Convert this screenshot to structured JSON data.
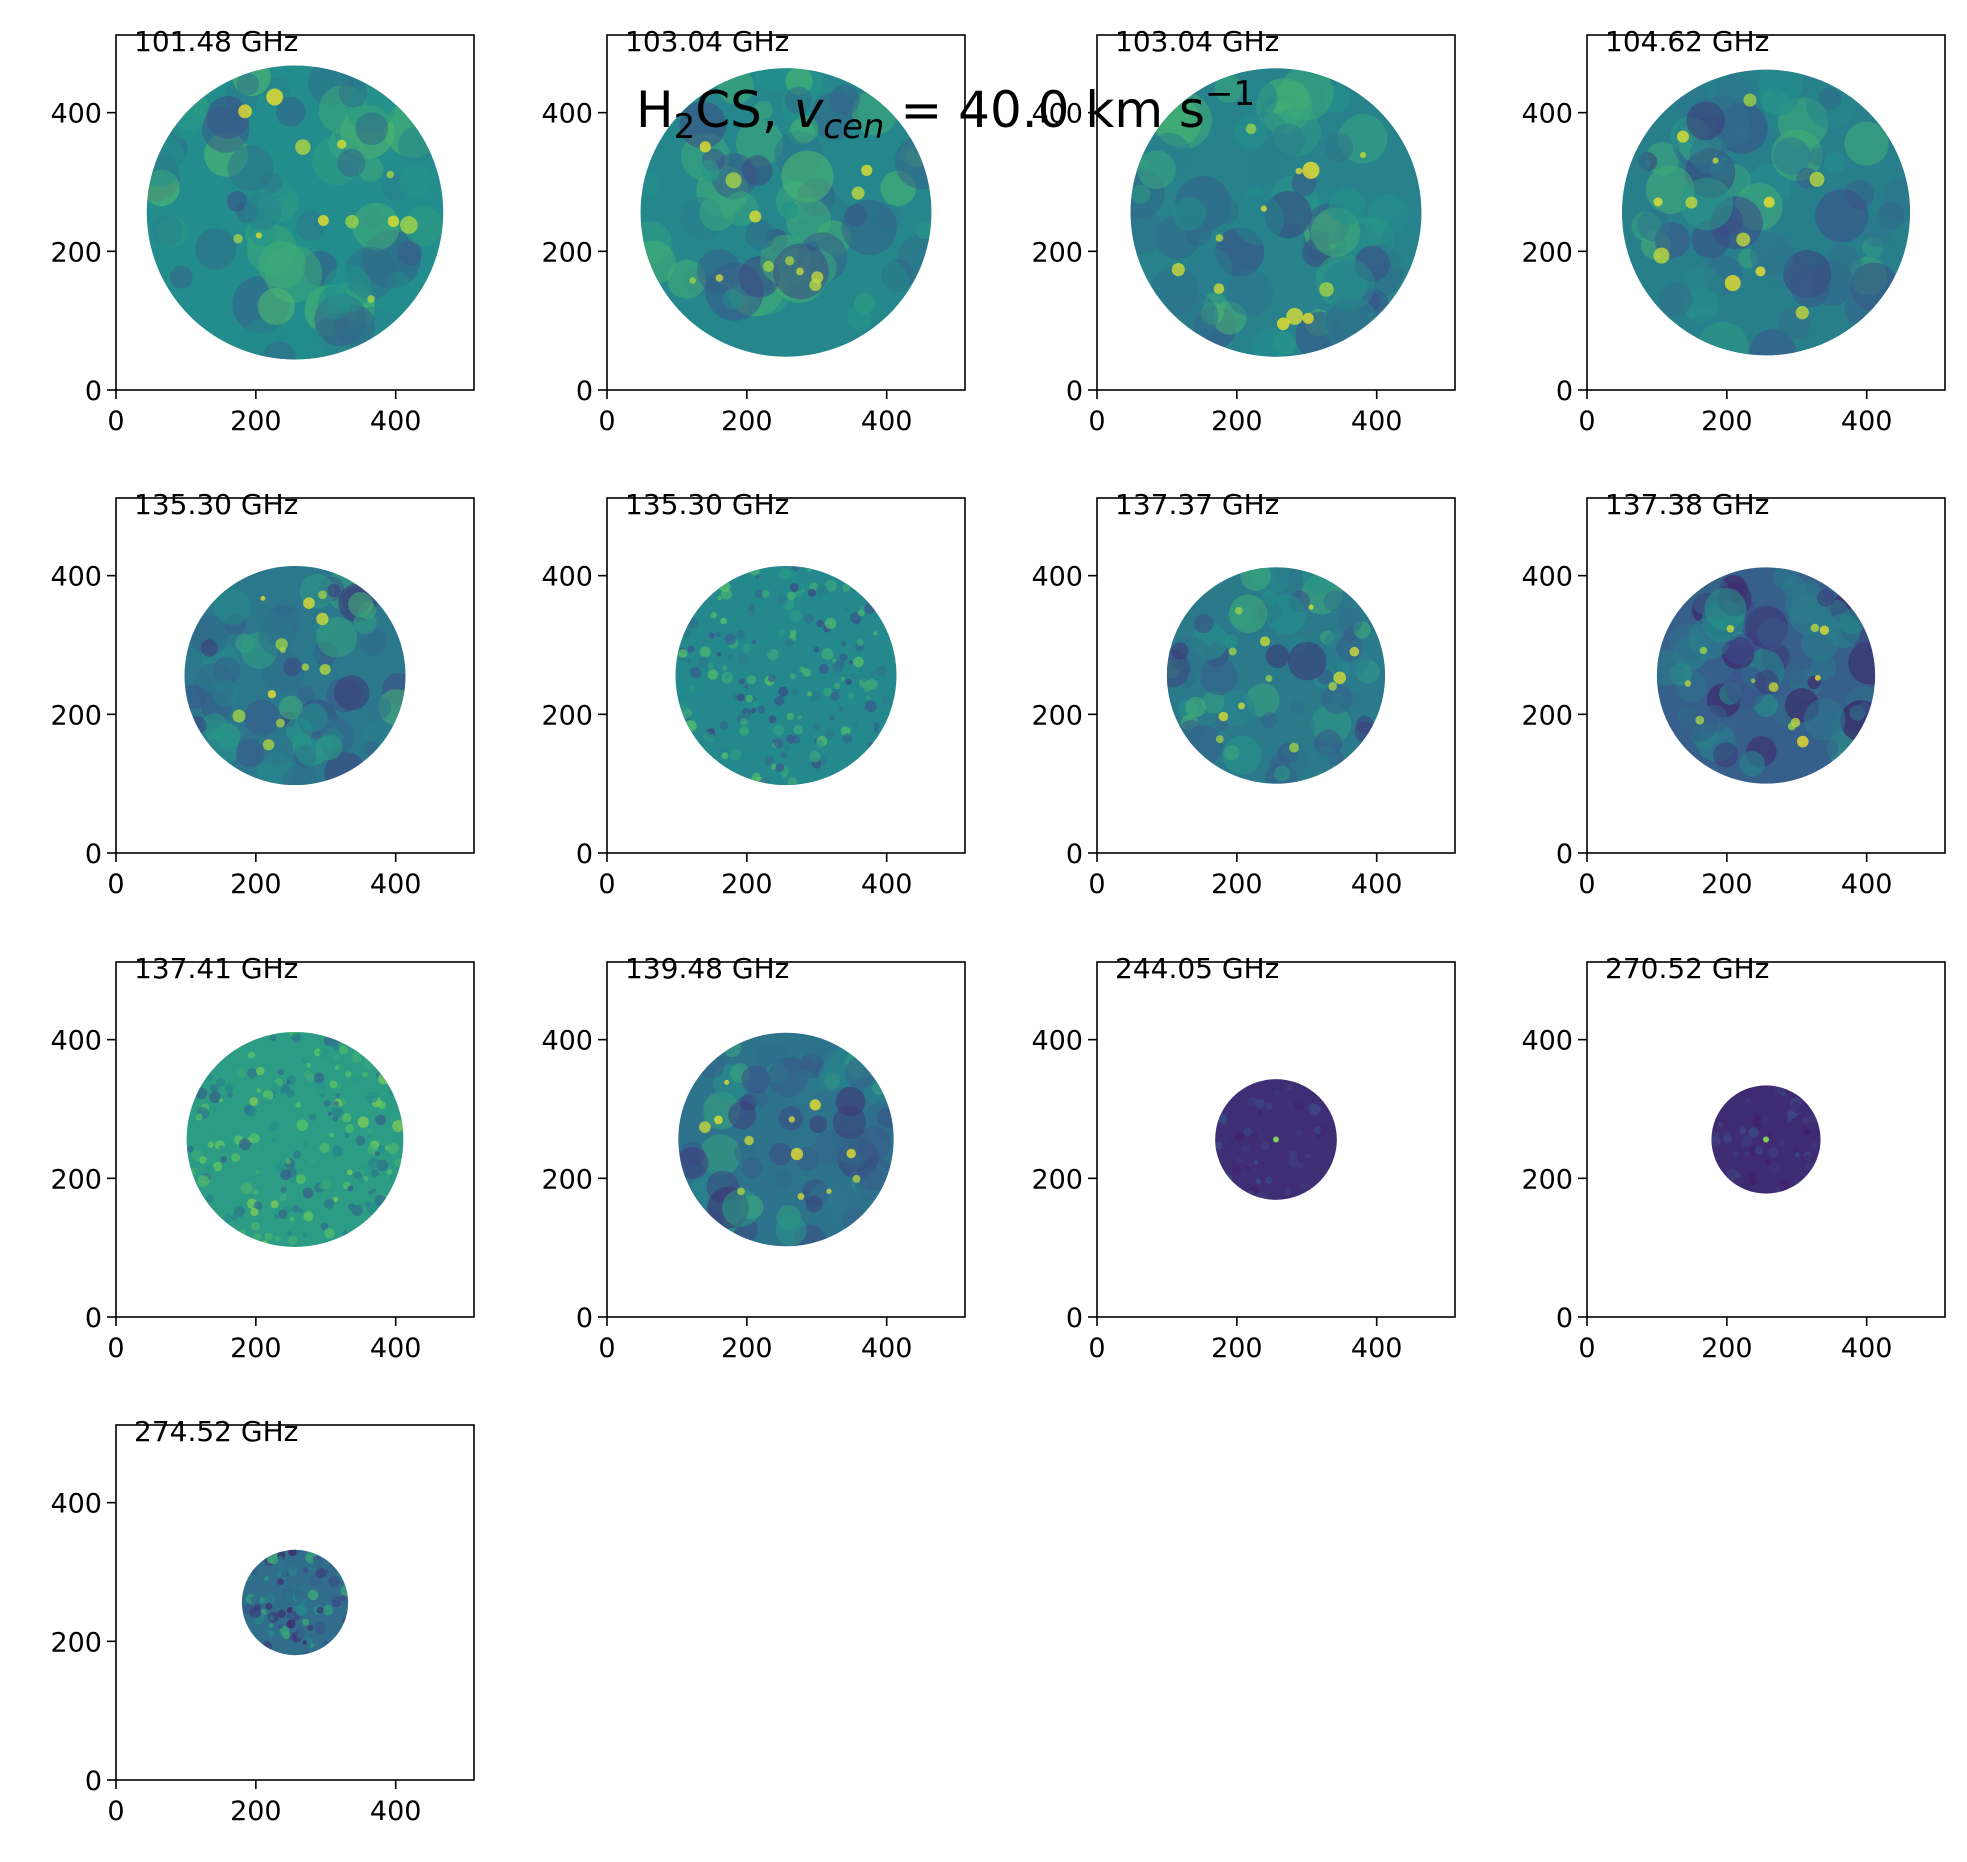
{
  "chart_data": {
    "type": "heatmap",
    "title": {
      "species_main": "H",
      "species_sub": "2",
      "species_rest": "CS, ",
      "var_main": "v",
      "var_sub": "cen",
      "equals": " = ",
      "value": "40.0",
      "unit": " km s",
      "unit_sup": "−1"
    },
    "x_ticks": [
      0,
      200,
      400
    ],
    "y_ticks": [
      0,
      200,
      400
    ],
    "xlim": [
      0,
      512
    ],
    "ylim": [
      0,
      512
    ],
    "grid": false,
    "colormap": "viridis",
    "colormap_stops": [
      "#440154",
      "#3b528b",
      "#21918c",
      "#5ec962",
      "#fde725"
    ],
    "panels": [
      {
        "label": "101.48 GHz",
        "cx": 256,
        "cy": 256,
        "r": 212,
        "brightness": 0.48,
        "texture": "smooth"
      },
      {
        "label": "103.04 GHz",
        "cx": 256,
        "cy": 256,
        "r": 208,
        "brightness": 0.46,
        "texture": "smooth"
      },
      {
        "label": "103.04 GHz",
        "cx": 256,
        "cy": 256,
        "r": 208,
        "brightness": 0.44,
        "texture": "smooth"
      },
      {
        "label": "104.62 GHz",
        "cx": 256,
        "cy": 256,
        "r": 206,
        "brightness": 0.43,
        "texture": "smooth"
      },
      {
        "label": "135.30 GHz",
        "cx": 256,
        "cy": 256,
        "r": 158,
        "brightness": 0.4,
        "texture": "smooth"
      },
      {
        "label": "135.30 GHz",
        "cx": 256,
        "cy": 256,
        "r": 158,
        "brightness": 0.47,
        "texture": "noise"
      },
      {
        "label": "137.37 GHz",
        "cx": 256,
        "cy": 256,
        "r": 156,
        "brightness": 0.41,
        "texture": "smooth"
      },
      {
        "label": "137.38 GHz",
        "cx": 256,
        "cy": 256,
        "r": 156,
        "brightness": 0.3,
        "texture": "smooth"
      },
      {
        "label": "137.41 GHz",
        "cx": 256,
        "cy": 256,
        "r": 155,
        "brightness": 0.55,
        "texture": "noise"
      },
      {
        "label": "139.48 GHz",
        "cx": 256,
        "cy": 256,
        "r": 154,
        "brightness": 0.38,
        "texture": "smooth"
      },
      {
        "label": "244.05 GHz",
        "cx": 256,
        "cy": 256,
        "r": 87,
        "brightness": 0.14,
        "texture": "point"
      },
      {
        "label": "270.52 GHz",
        "cx": 256,
        "cy": 256,
        "r": 78,
        "brightness": 0.13,
        "texture": "point"
      },
      {
        "label": "274.52 GHz",
        "cx": 256,
        "cy": 256,
        "r": 76,
        "brightness": 0.36,
        "texture": "noise"
      }
    ]
  }
}
